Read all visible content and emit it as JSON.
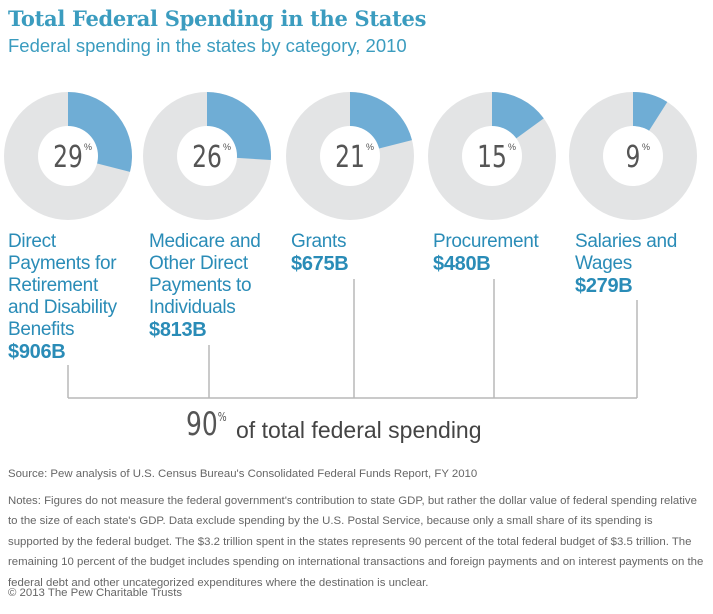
{
  "header": {
    "title": "Total Federal Spending in the States",
    "subtitle": "Federal spending in the states by category, 2010"
  },
  "colors": {
    "accent": "#3b9cbf",
    "slice": "#6fadd5",
    "ring": "#e3e4e5",
    "center": "#ffffff",
    "bracket": "#b8b8b8"
  },
  "chart_data": {
    "type": "pie",
    "categories": [
      "Direct Payments for Retirement and Disability Benefits",
      "Medicare and Other Direct Payments to Individuals",
      "Grants",
      "Procurement",
      "Salaries and Wages"
    ],
    "values": [
      29,
      26,
      21,
      15,
      9
    ],
    "value_labels": [
      "29",
      "26",
      "21",
      "15",
      "9"
    ],
    "percent_symbol": "%",
    "amounts": [
      "$906B",
      "$813B",
      "$675B",
      "$480B",
      "$279B"
    ],
    "unit": "% of total federal spending"
  },
  "categories": [
    {
      "label": "Direct Payments for Retirement and Disability Benefits",
      "amount": "$906B"
    },
    {
      "label": "Medicare and Other Direct Payments to Individuals",
      "amount": "$813B"
    },
    {
      "label": "Grants",
      "amount": "$675B"
    },
    {
      "label": "Procurement",
      "amount": "$480B"
    },
    {
      "label": "Salaries and Wages",
      "amount": "$279B"
    }
  ],
  "total": {
    "percent": "90",
    "symbol": "%",
    "text": "of total federal spending"
  },
  "footer": {
    "source": "Source: Pew analysis of U.S. Census Bureau's Consolidated Federal Funds Report, FY 2010",
    "notes": "Notes: Figures do not measure the federal government's contribution to state GDP, but rather the dollar value of federal spending relative to the size of each state's GDP. Data exclude spending by the U.S. Postal Service, because only a small share of its spending is supported by the federal budget. The $3.2 trillion spent in the states represents 90 percent of the total federal budget of $3.5 trillion. The remaining 10 percent of the budget includes spending on international transactions and foreign payments and on interest payments on the federal debt and other uncategorized expenditures where the destination is unclear.",
    "copyright": "© 2013 The Pew Charitable Trusts"
  }
}
